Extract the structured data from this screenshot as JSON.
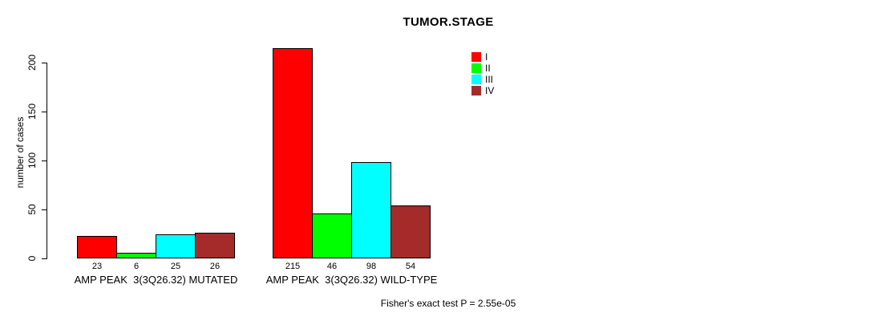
{
  "title": "TUMOR.STAGE",
  "ylabel": "number of cases",
  "footer": "Fisher's exact test P = 2.55e-05",
  "chart_data": {
    "type": "bar",
    "grouped": true,
    "title": "TUMOR.STAGE",
    "xlabel": "",
    "ylabel": "number of cases",
    "categories": [
      "AMP PEAK  3(3Q26.32) MUTATED",
      "AMP PEAK  3(3Q26.32) WILD-TYPE"
    ],
    "series": [
      {
        "name": "I",
        "color": "#ff0000",
        "values": [
          23,
          215
        ]
      },
      {
        "name": "II",
        "color": "#00ff00",
        "values": [
          6,
          46
        ]
      },
      {
        "name": "III",
        "color": "#00ffff",
        "values": [
          25,
          98
        ]
      },
      {
        "name": "IV",
        "color": "#a52a2a",
        "values": [
          26,
          54
        ]
      }
    ],
    "bar_value_labels": [
      [
        23,
        6,
        25,
        26
      ],
      [
        215,
        46,
        98,
        54
      ]
    ],
    "ylim": [
      0,
      220
    ],
    "yticks": [
      0,
      50,
      100,
      150,
      200
    ],
    "grid": false,
    "legend_position": "top-right",
    "annotation": "Fisher's exact test P = 2.55e-05"
  }
}
